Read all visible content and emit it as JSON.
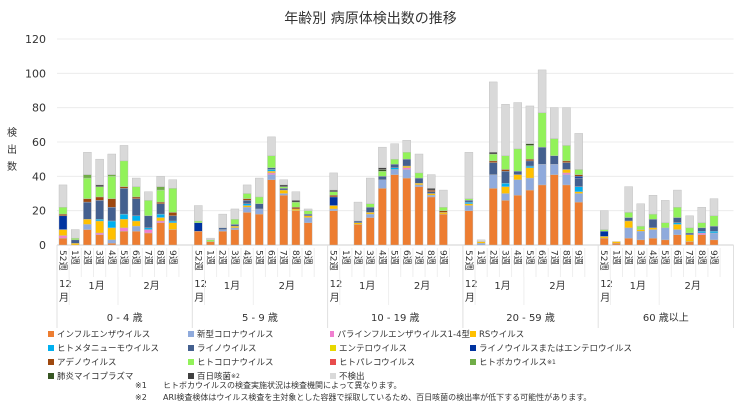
{
  "chart_data": {
    "type": "bar",
    "stacked": true,
    "title": "年齢別 病原体検出数の推移",
    "ylabel": "検出数",
    "ylim": [
      0,
      120
    ],
    "yticks": [
      0,
      20,
      40,
      60,
      80,
      100,
      120
    ],
    "grid": true,
    "legend_placement": "bottom",
    "weeks": [
      "52週",
      "1週",
      "2週",
      "3週",
      "4週",
      "5週",
      "6週",
      "7週",
      "8週",
      "9週"
    ],
    "months": [
      {
        "label": "12月",
        "top": "12",
        "bottom": "月",
        "weeks": 1
      },
      {
        "label": "1月",
        "weeks": 4
      },
      {
        "label": "2月",
        "weeks": 5
      }
    ],
    "series": [
      {
        "name": "インフルエンザウイルス",
        "color": "#ED7D31"
      },
      {
        "name": "新型コロナウイルス",
        "color": "#8FAADC"
      },
      {
        "name": "パラインフルエンザウイルス1-4型",
        "color": "#F07FD0"
      },
      {
        "name": "RSウイルス",
        "color": "#FFC000"
      },
      {
        "name": "ヒトメタニューモウイルス",
        "color": "#00B0F0"
      },
      {
        "name": "ライノウイルス",
        "color": "#44608F"
      },
      {
        "name": "エンテロウイルス",
        "color": "#E8D800"
      },
      {
        "name": "ライノウイルスまたはエンテロウイルス",
        "color": "#0033A0"
      },
      {
        "name": "アデノウイルス",
        "color": "#9E480E"
      },
      {
        "name": "ヒトコロナウイルス",
        "color": "#92F25A"
      },
      {
        "name": "ヒトパレコウイルス",
        "color": "#E84C4C"
      },
      {
        "name": "ヒトボカウイルス",
        "sup": "※1",
        "color": "#70AD47"
      },
      {
        "name": "肺炎マイコプラズマ",
        "color": "#375623"
      },
      {
        "name": "百日咳菌",
        "sup": "※2",
        "color": "#404040"
      },
      {
        "name": "不検出",
        "color": "#D9D9D9"
      }
    ],
    "groups": [
      {
        "label": "0 - 4 歳",
        "values": [
          [
            4,
            0,
            1.5,
            3.5,
            0,
            0,
            0,
            8,
            1,
            4,
            0,
            0,
            0,
            0,
            13
          ],
          [
            0,
            0,
            0,
            1,
            0,
            2,
            0,
            0,
            0,
            1,
            0,
            0,
            0,
            0,
            5
          ],
          [
            9,
            3,
            0,
            3,
            0,
            10,
            0,
            0,
            2,
            12,
            0,
            2,
            0,
            0,
            13
          ],
          [
            6,
            0,
            1,
            7,
            1,
            11,
            0,
            0,
            2,
            6,
            0,
            0,
            0,
            1,
            15
          ],
          [
            1,
            2,
            0,
            7,
            4,
            8,
            0,
            0,
            5,
            13,
            0,
            1,
            0,
            0,
            12
          ],
          [
            8,
            0,
            2,
            5,
            3,
            15,
            0,
            0,
            1,
            15,
            0,
            0,
            0,
            0,
            9
          ],
          [
            8,
            3,
            0,
            3,
            3,
            10,
            0,
            0,
            1,
            6,
            0,
            0,
            0,
            0,
            5
          ],
          [
            7,
            0,
            2,
            0,
            1,
            7,
            0,
            0,
            0,
            9,
            0,
            0,
            0,
            0,
            5
          ],
          [
            13,
            0,
            1,
            2,
            2,
            6,
            0,
            0,
            1,
            7,
            0,
            2,
            0,
            0,
            6
          ],
          [
            9,
            0,
            0,
            4,
            1,
            3,
            0,
            0,
            2,
            14,
            0,
            0,
            0,
            0,
            5
          ]
        ]
      },
      {
        "label": "5 - 9 歳",
        "values": [
          [
            8,
            0,
            0,
            0,
            0,
            0,
            0,
            5,
            0,
            1,
            0,
            0,
            0,
            0,
            9
          ],
          [
            2,
            0,
            0,
            0,
            0,
            0,
            0,
            0,
            0,
            1,
            0,
            0,
            0,
            0,
            1
          ],
          [
            8,
            1,
            0,
            0,
            0,
            1,
            0,
            0,
            0,
            0,
            0,
            0,
            0,
            0,
            8
          ],
          [
            9,
            1,
            0,
            1,
            0,
            1,
            0,
            0,
            0,
            3,
            0,
            0,
            0,
            0,
            6
          ],
          [
            19,
            3,
            0,
            1,
            1,
            2,
            0,
            0,
            1,
            3,
            0,
            0,
            0,
            0,
            5
          ],
          [
            18,
            3,
            0,
            0,
            0,
            3,
            0,
            0,
            0,
            4,
            0,
            0,
            0,
            0,
            11
          ],
          [
            38,
            3,
            1,
            1,
            1,
            1,
            0,
            0,
            0,
            7,
            0,
            0,
            0,
            0,
            11
          ],
          [
            29,
            1,
            0,
            2,
            0,
            1,
            0,
            0,
            0,
            1,
            0,
            0,
            0,
            1,
            3
          ],
          [
            20,
            0,
            0,
            1,
            0,
            0,
            0,
            0,
            1,
            3,
            0,
            0,
            0,
            1,
            5
          ],
          [
            13,
            3,
            0,
            1,
            0,
            1,
            0,
            0,
            0,
            2,
            0,
            0,
            0,
            0,
            1
          ]
        ]
      },
      {
        "label": "10 - 19 歳",
        "values": [
          [
            20,
            1,
            0,
            2,
            0,
            0,
            0,
            5,
            1,
            2,
            0,
            0,
            0,
            1,
            10
          ],
          [
            0,
            0,
            0,
            0,
            0,
            0,
            0,
            0,
            0,
            0,
            0,
            0,
            0,
            0,
            0
          ],
          [
            12,
            0,
            0,
            1,
            0,
            1,
            0,
            0,
            0,
            0,
            0,
            0,
            0,
            0,
            11
          ],
          [
            16,
            2,
            0,
            1,
            0,
            3,
            0,
            0,
            0,
            2,
            0,
            0,
            0,
            0,
            15
          ],
          [
            33,
            5,
            0,
            0,
            0,
            2,
            0,
            0,
            0,
            3,
            0,
            0,
            1,
            1,
            12
          ],
          [
            41,
            3,
            0,
            0,
            1,
            2,
            0,
            0,
            0,
            3,
            0,
            0,
            0,
            0,
            9
          ],
          [
            39,
            5,
            1,
            1,
            0,
            4,
            0,
            0,
            0,
            4,
            0,
            0,
            0,
            0,
            7
          ],
          [
            34,
            1,
            0,
            1,
            0,
            3,
            0,
            0,
            0,
            3,
            0,
            0,
            0,
            0,
            11
          ],
          [
            28,
            1,
            0,
            1,
            0,
            1,
            0,
            0,
            1,
            0,
            0,
            0,
            0,
            1,
            8
          ],
          [
            18,
            0,
            0,
            1,
            0,
            0,
            0,
            0,
            1,
            2,
            0,
            0,
            0,
            0,
            10
          ]
        ]
      },
      {
        "label": "20 - 59 歳",
        "values": [
          [
            20,
            3,
            0,
            1,
            1,
            1,
            0,
            0,
            0,
            1,
            0,
            0,
            0,
            0,
            27
          ],
          [
            0,
            1,
            0,
            1,
            0,
            0,
            0,
            0,
            0,
            0,
            0,
            0,
            0,
            0,
            1
          ],
          [
            33,
            8,
            0,
            0,
            0,
            7,
            0,
            0,
            1,
            4,
            0,
            0,
            0,
            1,
            41
          ],
          [
            26,
            4,
            0,
            4,
            2,
            7,
            0,
            0,
            1,
            8,
            0,
            0,
            0,
            0,
            30
          ],
          [
            29,
            9,
            0,
            3,
            0,
            2,
            0,
            0,
            0,
            13,
            0,
            0,
            0,
            0,
            27
          ],
          [
            32,
            7,
            0,
            6,
            1,
            3,
            0,
            0,
            1,
            8,
            0,
            0,
            1,
            0,
            22
          ],
          [
            35,
            12,
            0,
            0,
            0,
            10,
            0,
            0,
            0,
            20,
            0,
            0,
            0,
            0,
            25
          ],
          [
            41,
            6,
            0,
            0,
            0,
            5,
            0,
            0,
            0,
            10,
            0,
            0,
            0,
            0,
            18
          ],
          [
            35,
            6,
            1,
            2,
            0,
            4,
            0,
            0,
            1,
            9,
            0,
            0,
            0,
            0,
            22
          ],
          [
            25,
            5,
            0,
            1,
            3,
            5,
            0,
            1,
            1,
            3,
            0,
            0,
            0,
            0,
            21
          ]
        ]
      },
      {
        "label": "60 歳以上",
        "values": [
          [
            4,
            0,
            0,
            1,
            0,
            0,
            0,
            3,
            0,
            1,
            0,
            0,
            0,
            0,
            11
          ],
          [
            1,
            0,
            0,
            1,
            0,
            0,
            0,
            0,
            0,
            0,
            0,
            0,
            0,
            0,
            0
          ],
          [
            4,
            6,
            0,
            4,
            0,
            2,
            0,
            0,
            0,
            3,
            0,
            0,
            0,
            0,
            15
          ],
          [
            3,
            5,
            0,
            1,
            0,
            0,
            0,
            0,
            0,
            2,
            0,
            0,
            0,
            0,
            13
          ],
          [
            4,
            5,
            0,
            1,
            0,
            5,
            0,
            0,
            0,
            3,
            0,
            0,
            0,
            0,
            11
          ],
          [
            3,
            7,
            0,
            0,
            0,
            0,
            0,
            0,
            0,
            3,
            0,
            0,
            0,
            0,
            13
          ],
          [
            6,
            3,
            0,
            3,
            1,
            3,
            0,
            0,
            0,
            6,
            0,
            0,
            0,
            0,
            10
          ],
          [
            2,
            0,
            0,
            4,
            0,
            1,
            0,
            0,
            0,
            3,
            0,
            0,
            0,
            0,
            7
          ],
          [
            6,
            0,
            1,
            0,
            1,
            2,
            0,
            0,
            0,
            3,
            0,
            0,
            0,
            0,
            9
          ],
          [
            3,
            4,
            0,
            0,
            1,
            3,
            0,
            0,
            0,
            6,
            0,
            0,
            0,
            0,
            10
          ]
        ]
      }
    ]
  },
  "notes": [
    {
      "mark": "※1",
      "text": "ヒトボカウイルスの検査実施状況は検査機関によって異なります。"
    },
    {
      "mark": "※2",
      "text": "ARI検査検体はウイルス検査を主対象とした容器で採取しているため、百日咳菌の検出率が低下する可能性があります。"
    }
  ]
}
